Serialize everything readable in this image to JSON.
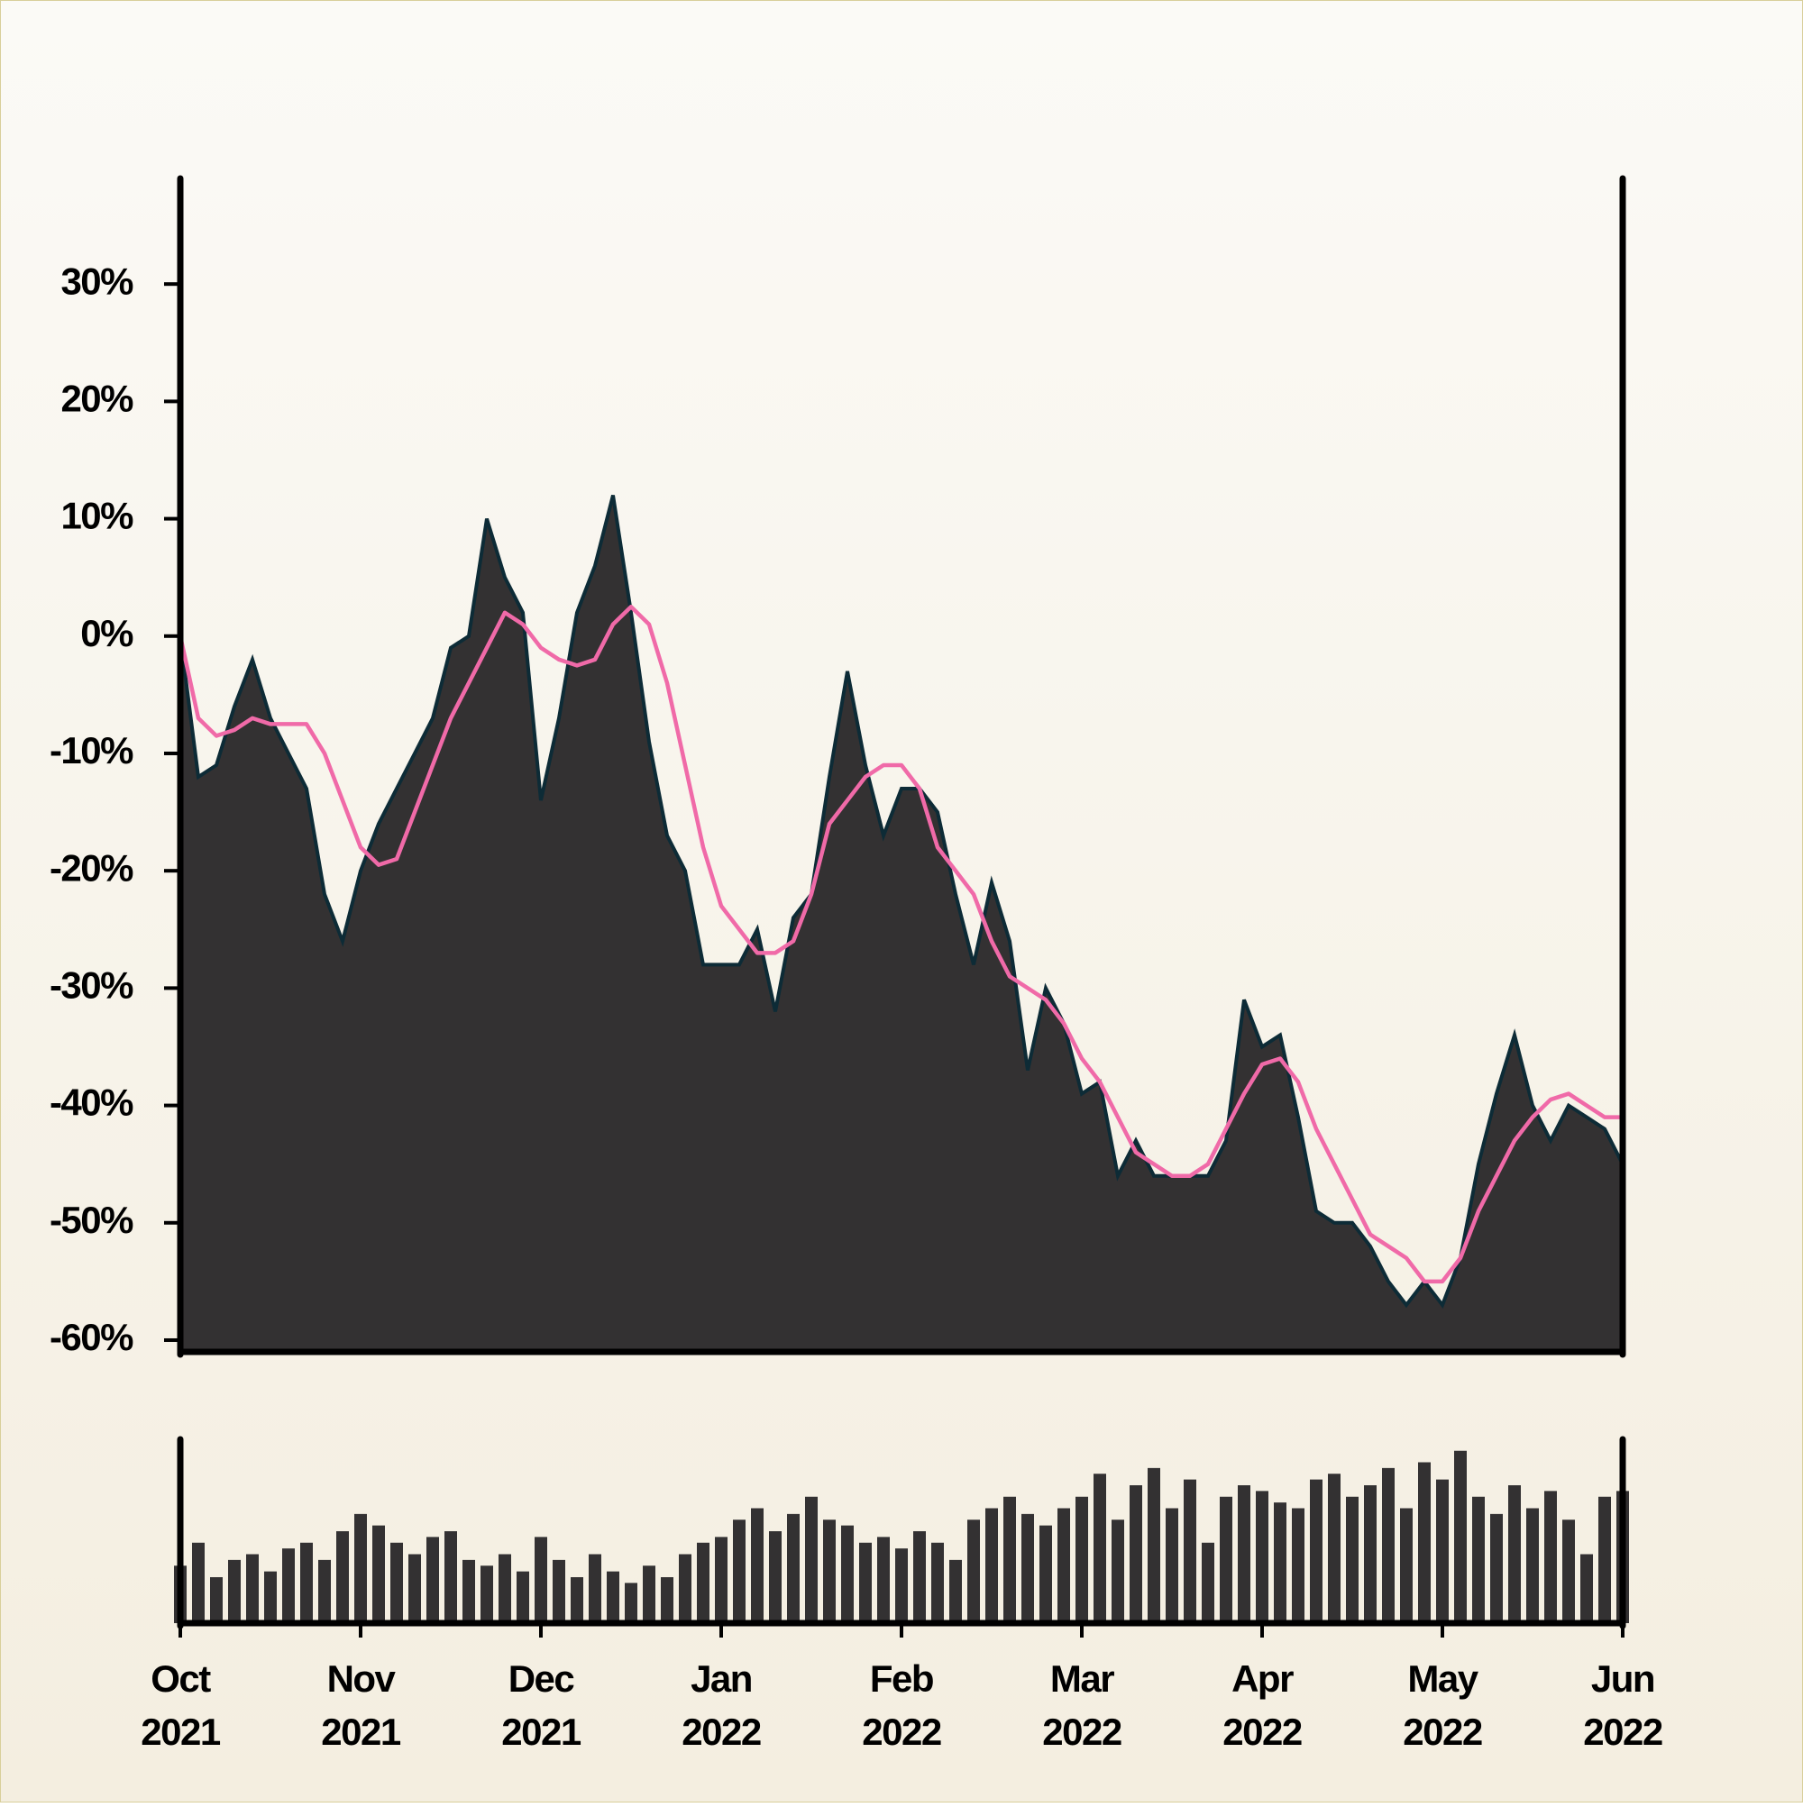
{
  "chart_data": [
    {
      "type": "area",
      "series": [
        {
          "color": "#333132",
          "stroke": "#0d2b36",
          "type": "area",
          "values": [
            0,
            -12,
            -11,
            -6,
            -2,
            -7,
            -10,
            -13,
            -22,
            -26,
            -20,
            -16,
            -13,
            -10,
            -7,
            -1,
            0,
            10,
            5,
            2,
            -14,
            -7,
            2,
            6,
            12,
            2,
            -9,
            -17,
            -20,
            -28,
            -28,
            -28,
            -25,
            -32,
            -24,
            -22,
            -12,
            -3,
            -11,
            -17,
            -13,
            -13,
            -15,
            -22,
            -28,
            -21,
            -26,
            -37,
            -30,
            -33,
            -39,
            -38,
            -46,
            -43,
            -46,
            -46,
            -46,
            -46,
            -43,
            -31,
            -35,
            -34,
            -41,
            -49,
            -50,
            -50,
            -52,
            -55,
            -57,
            -55,
            -57,
            -53,
            -45,
            -39,
            -34,
            -40,
            -43,
            -40,
            -41,
            -42,
            -45
          ]
        },
        {
          "color": "#f06aa8",
          "type": "line",
          "values": [
            0,
            -7,
            -8.5,
            -8,
            -7,
            -7.5,
            -7.5,
            -7.5,
            -10,
            -14,
            -18,
            -19.5,
            -19,
            -15,
            -11,
            -7,
            -4,
            -1,
            2,
            1,
            -1,
            -2,
            -2.5,
            -2,
            1,
            2.5,
            1,
            -4,
            -11,
            -18,
            -23,
            -25,
            -27,
            -27,
            -26,
            -22,
            -16,
            -14,
            -12,
            -11,
            -11,
            -13,
            -18,
            -20,
            -22,
            -26,
            -29,
            -30,
            -31,
            -33,
            -36,
            -38,
            -41,
            -44,
            -45,
            -46,
            -46,
            -45,
            -42,
            -39,
            -36.5,
            -36,
            -38,
            -42,
            -45,
            -48,
            -51,
            -52,
            -53,
            -55,
            -55,
            -53,
            -49,
            -46,
            -43,
            -41,
            -39.5,
            -39,
            -40,
            -41,
            -41
          ]
        }
      ],
      "ylim": [
        -61,
        39
      ],
      "yticks": [
        {
          "value": 30,
          "label": "30%"
        },
        {
          "value": 20,
          "label": "20%"
        },
        {
          "value": 10,
          "label": "10%"
        },
        {
          "value": 0,
          "label": "0%"
        },
        {
          "value": -10,
          "label": "-10%"
        },
        {
          "value": -20,
          "label": "-20%"
        },
        {
          "value": -30,
          "label": "-30%"
        },
        {
          "value": -40,
          "label": "-40%"
        },
        {
          "value": -50,
          "label": "-50%"
        },
        {
          "value": -60,
          "label": "-60%"
        }
      ]
    },
    {
      "type": "bar",
      "color": "#333132",
      "categories": [
        "Oct 2021",
        null,
        null,
        null,
        null,
        null,
        null,
        null,
        null,
        null,
        "Nov 2021",
        null,
        null,
        null,
        null,
        null,
        null,
        null,
        null,
        null,
        "Dec 2021",
        null,
        null,
        null,
        null,
        null,
        null,
        null,
        null,
        null,
        "Jan 2022",
        null,
        null,
        null,
        null,
        null,
        null,
        null,
        null,
        null,
        "Feb 2022",
        null,
        null,
        null,
        null,
        null,
        null,
        null,
        null,
        null,
        "Mar 2022",
        null,
        null,
        null,
        null,
        null,
        null,
        null,
        null,
        null,
        "Apr 2022",
        null,
        null,
        null,
        null,
        null,
        null,
        null,
        null,
        null,
        "May 2022",
        null,
        null,
        null,
        null,
        null,
        null,
        null,
        null,
        null,
        "Jun 2022"
      ],
      "values": [
        50,
        70,
        40,
        55,
        60,
        45,
        65,
        70,
        55,
        80,
        95,
        85,
        70,
        60,
        75,
        80,
        55,
        50,
        60,
        45,
        75,
        55,
        40,
        60,
        45,
        35,
        50,
        40,
        60,
        70,
        75,
        90,
        100,
        80,
        95,
        110,
        90,
        85,
        70,
        75,
        65,
        80,
        70,
        55,
        90,
        100,
        110,
        95,
        85,
        100,
        110,
        130,
        90,
        120,
        135,
        100,
        125,
        70,
        110,
        120,
        115,
        105,
        100,
        125,
        130,
        110,
        120,
        135,
        100,
        140,
        125,
        150,
        110,
        95,
        120,
        100,
        115,
        90,
        60,
        110,
        115
      ],
      "ylim": [
        0,
        160
      ]
    }
  ]
}
